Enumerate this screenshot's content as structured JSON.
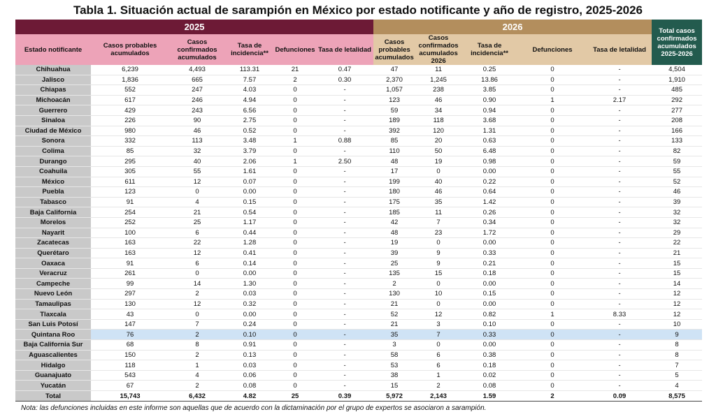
{
  "title": "Tabla 1. Situación actual de sarampión en México por estado notificante y año de registro, 2025-2026",
  "table": {
    "group_headers": [
      "2025",
      "2026"
    ],
    "columns": [
      "Estado notificante",
      "Casos probables acumulados",
      "Casos confirmados acumulados",
      "Tasa de incidencia**",
      "Defunciones",
      "Tasa de letalidad",
      "Casos probables acumulados",
      "Casos confirmados acumulados 2026",
      "Tasa de incidencia**",
      "Defunciones",
      "Tasa de letalidad",
      "Total casos confirmados acumulados 2025-2026"
    ],
    "rows": [
      [
        "Chihuahua",
        "6,239",
        "4,493",
        "113.31",
        "21",
        "0.47",
        "47",
        "11",
        "0.25",
        "0",
        "-",
        "4,504"
      ],
      [
        "Jalisco",
        "1,836",
        "665",
        "7.57",
        "2",
        "0.30",
        "2,370",
        "1,245",
        "13.86",
        "0",
        "-",
        "1,910"
      ],
      [
        "Chiapas",
        "552",
        "247",
        "4.03",
        "0",
        "-",
        "1,057",
        "238",
        "3.85",
        "0",
        "-",
        "485"
      ],
      [
        "Michoacán",
        "617",
        "246",
        "4.94",
        "0",
        "-",
        "123",
        "46",
        "0.90",
        "1",
        "2.17",
        "292"
      ],
      [
        "Guerrero",
        "429",
        "243",
        "6.56",
        "0",
        "-",
        "59",
        "34",
        "0.94",
        "0",
        "-",
        "277"
      ],
      [
        "Sinaloa",
        "226",
        "90",
        "2.75",
        "0",
        "-",
        "189",
        "118",
        "3.68",
        "0",
        "-",
        "208"
      ],
      [
        "Ciudad de México",
        "980",
        "46",
        "0.52",
        "0",
        "-",
        "392",
        "120",
        "1.31",
        "0",
        "-",
        "166"
      ],
      [
        "Sonora",
        "332",
        "113",
        "3.48",
        "1",
        "0.88",
        "85",
        "20",
        "0.63",
        "0",
        "-",
        "133"
      ],
      [
        "Colima",
        "85",
        "32",
        "3.79",
        "0",
        "-",
        "110",
        "50",
        "6.48",
        "0",
        "-",
        "82"
      ],
      [
        "Durango",
        "295",
        "40",
        "2.06",
        "1",
        "2.50",
        "48",
        "19",
        "0.98",
        "0",
        "-",
        "59"
      ],
      [
        "Coahuila",
        "305",
        "55",
        "1.61",
        "0",
        "-",
        "17",
        "0",
        "0.00",
        "0",
        "-",
        "55"
      ],
      [
        "México",
        "611",
        "12",
        "0.07",
        "0",
        "-",
        "199",
        "40",
        "0.22",
        "0",
        "-",
        "52"
      ],
      [
        "Puebla",
        "123",
        "0",
        "0.00",
        "0",
        "-",
        "180",
        "46",
        "0.64",
        "0",
        "-",
        "46"
      ],
      [
        "Tabasco",
        "91",
        "4",
        "0.15",
        "0",
        "-",
        "175",
        "35",
        "1.42",
        "0",
        "-",
        "39"
      ],
      [
        "Baja California",
        "254",
        "21",
        "0.54",
        "0",
        "-",
        "185",
        "11",
        "0.26",
        "0",
        "-",
        "32"
      ],
      [
        "Morelos",
        "252",
        "25",
        "1.17",
        "0",
        "-",
        "42",
        "7",
        "0.34",
        "0",
        "-",
        "32"
      ],
      [
        "Nayarit",
        "100",
        "6",
        "0.44",
        "0",
        "-",
        "48",
        "23",
        "1.72",
        "0",
        "-",
        "29"
      ],
      [
        "Zacatecas",
        "163",
        "22",
        "1.28",
        "0",
        "-",
        "19",
        "0",
        "0.00",
        "0",
        "-",
        "22"
      ],
      [
        "Querétaro",
        "163",
        "12",
        "0.41",
        "0",
        "-",
        "39",
        "9",
        "0.33",
        "0",
        "-",
        "21"
      ],
      [
        "Oaxaca",
        "91",
        "6",
        "0.14",
        "0",
        "-",
        "25",
        "9",
        "0.21",
        "0",
        "-",
        "15"
      ],
      [
        "Veracruz",
        "261",
        "0",
        "0.00",
        "0",
        "-",
        "135",
        "15",
        "0.18",
        "0",
        "-",
        "15"
      ],
      [
        "Campeche",
        "99",
        "14",
        "1.30",
        "0",
        "-",
        "2",
        "0",
        "0.00",
        "0",
        "-",
        "14"
      ],
      [
        "Nuevo León",
        "297",
        "2",
        "0.03",
        "0",
        "-",
        "130",
        "10",
        "0.15",
        "0",
        "-",
        "12"
      ],
      [
        "Tamaulipas",
        "130",
        "12",
        "0.32",
        "0",
        "-",
        "21",
        "0",
        "0.00",
        "0",
        "-",
        "12"
      ],
      [
        "Tlaxcala",
        "43",
        "0",
        "0.00",
        "0",
        "-",
        "52",
        "12",
        "0.82",
        "1",
        "8.33",
        "12"
      ],
      [
        "San Luis Potosí",
        "147",
        "7",
        "0.24",
        "0",
        "-",
        "21",
        "3",
        "0.10",
        "0",
        "-",
        "10"
      ],
      [
        "Quintana Roo",
        "76",
        "2",
        "0.10",
        "0",
        "-",
        "35",
        "7",
        "0.33",
        "0",
        "-",
        "9"
      ],
      [
        "Baja California Sur",
        "68",
        "8",
        "0.91",
        "0",
        "-",
        "3",
        "0",
        "0.00",
        "0",
        "-",
        "8"
      ],
      [
        "Aguascalientes",
        "150",
        "2",
        "0.13",
        "0",
        "-",
        "58",
        "6",
        "0.38",
        "0",
        "-",
        "8"
      ],
      [
        "Hidalgo",
        "118",
        "1",
        "0.03",
        "0",
        "-",
        "53",
        "6",
        "0.18",
        "0",
        "-",
        "7"
      ],
      [
        "Guanajuato",
        "543",
        "4",
        "0.06",
        "0",
        "-",
        "38",
        "1",
        "0.02",
        "0",
        "-",
        "5"
      ],
      [
        "Yucatán",
        "67",
        "2",
        "0.08",
        "0",
        "-",
        "15",
        "2",
        "0.08",
        "0",
        "-",
        "4"
      ]
    ],
    "total": [
      "Total",
      "15,743",
      "6,432",
      "4.82",
      "25",
      "0.39",
      "5,972",
      "2,143",
      "1.59",
      "2",
      "0.09",
      "8,575"
    ]
  },
  "note": "Nota: las defunciones incluidas en este informe son aquellas que de acuerdo con la dictaminación por el grupo de expertos se asociaron a sarampión."
}
